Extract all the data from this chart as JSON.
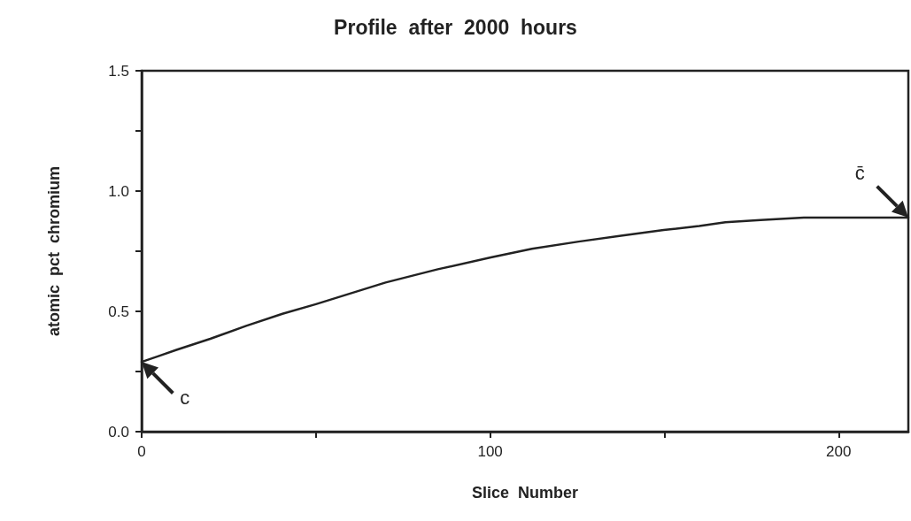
{
  "chart_data": {
    "type": "line",
    "title": "Profile  after  2000  hours",
    "xlabel": "Slice  Number",
    "ylabel": "atomic  pct  chromium",
    "x": [
      0,
      5,
      10,
      19.7,
      30,
      40.4,
      50,
      60,
      70,
      85,
      100.2,
      112,
      125.4,
      138,
      149.8,
      160,
      167.5,
      177.6,
      190,
      200,
      210,
      220
    ],
    "series": [
      {
        "color": "#222222",
        "values": [
          0.29,
          0.315,
          0.34,
          0.386,
          0.44,
          0.49,
          0.53,
          0.575,
          0.62,
          0.675,
          0.724,
          0.76,
          0.79,
          0.815,
          0.838,
          0.855,
          0.87,
          0.88,
          0.89,
          0.89,
          0.89,
          0.89
        ]
      }
    ],
    "xlim": [
      0,
      220
    ],
    "ylim": [
      0,
      1.5
    ],
    "xticks": [
      0,
      {
        "value": 50,
        "label": null
      },
      100,
      {
        "value": 150,
        "label": null
      },
      200
    ],
    "yticks": [
      {
        "value": 0,
        "label": "0.0"
      },
      {
        "value": 0.25,
        "label": null
      },
      0.5,
      {
        "value": 0.75,
        "label": null
      },
      {
        "value": 1,
        "label": "1.0"
      },
      {
        "value": 1.25,
        "label": null
      },
      1.5
    ],
    "annotations": [
      {
        "text": "c",
        "x": 0,
        "y": 0.29
      },
      {
        "text": "c̄",
        "x": 220,
        "y": 0.89
      }
    ],
    "grid": false,
    "marker": "none",
    "line_style": "solid"
  }
}
